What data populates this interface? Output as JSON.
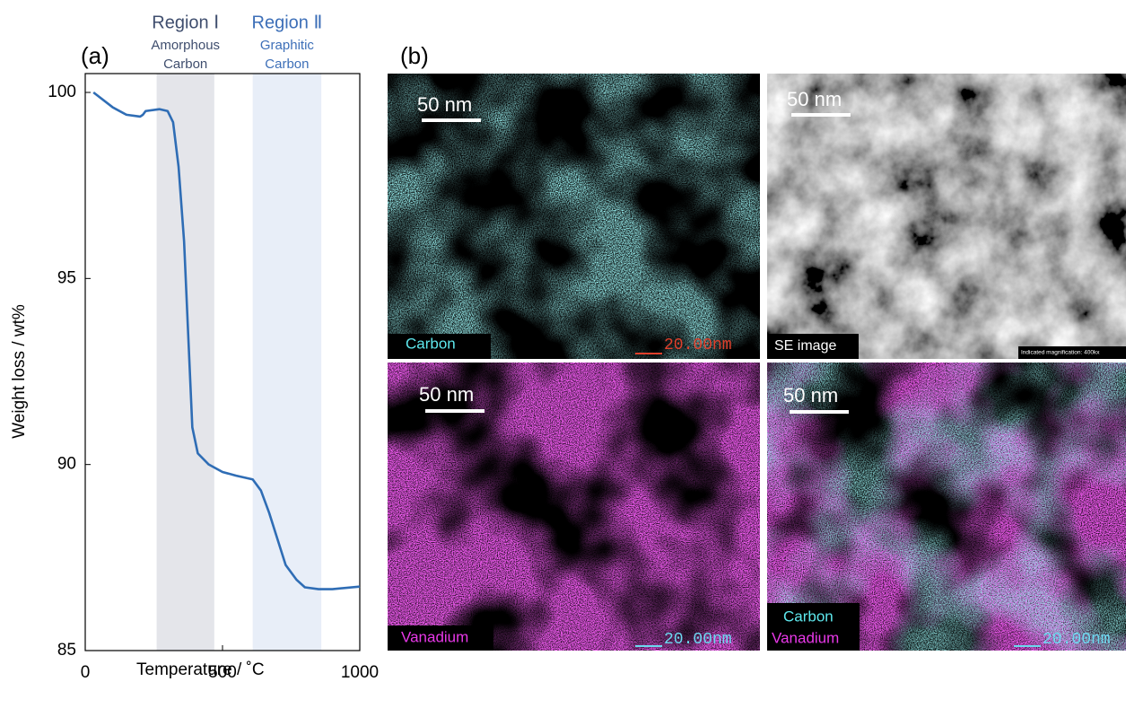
{
  "chart_data": {
    "type": "line",
    "panel_label": "(a)",
    "x_label": "Temperature / ˚C",
    "y_label": "Weight loss / wt%",
    "xlim": [
      0,
      1000
    ],
    "xticks": [
      0,
      500,
      1000
    ],
    "ylim": [
      85,
      100
    ],
    "yticks": [
      85,
      90,
      95,
      100
    ],
    "regions": [
      {
        "name": "Region Ⅰ",
        "label": [
          "Amorphous",
          "Carbon"
        ],
        "range": [
          260,
          470
        ],
        "color": "#e4e5ea",
        "text_color": "#3f4e6e"
      },
      {
        "name": "Region Ⅱ",
        "label": [
          "Graphitic",
          "Carbon"
        ],
        "range": [
          610,
          860
        ],
        "color": "#e8eef8",
        "text_color": "#3d6fb8"
      }
    ],
    "series": [
      {
        "color": "#2f6db5",
        "x": [
          30,
          100,
          150,
          200,
          210,
          220,
          270,
          300,
          320,
          340,
          360,
          375,
          390,
          410,
          450,
          500,
          550,
          610,
          640,
          670,
          700,
          730,
          770,
          800,
          850,
          900,
          1000
        ],
        "values": [
          100,
          99.6,
          99.4,
          99.35,
          99.4,
          99.5,
          99.55,
          99.5,
          99.2,
          98,
          96,
          93.5,
          91,
          90.3,
          90,
          89.8,
          89.7,
          89.6,
          89.3,
          88.7,
          88,
          87.3,
          86.9,
          86.7,
          86.65,
          86.65,
          86.72
        ]
      }
    ]
  },
  "panel_b": {
    "panel_label": "(b)",
    "images": [
      {
        "scale": "50 nm",
        "labels": [
          "Carbon"
        ],
        "footer": "20.00nm"
      },
      {
        "scale": "50 nm",
        "labels": [
          "SE image"
        ],
        "footer": "Indicated magnification: 400kx"
      },
      {
        "scale": "50 nm",
        "labels": [
          "Vanadium"
        ],
        "footer": "20.00nm"
      },
      {
        "scale": "50 nm",
        "labels": [
          "Carbon",
          "Vanadium"
        ],
        "footer": "20.00nm"
      }
    ]
  }
}
